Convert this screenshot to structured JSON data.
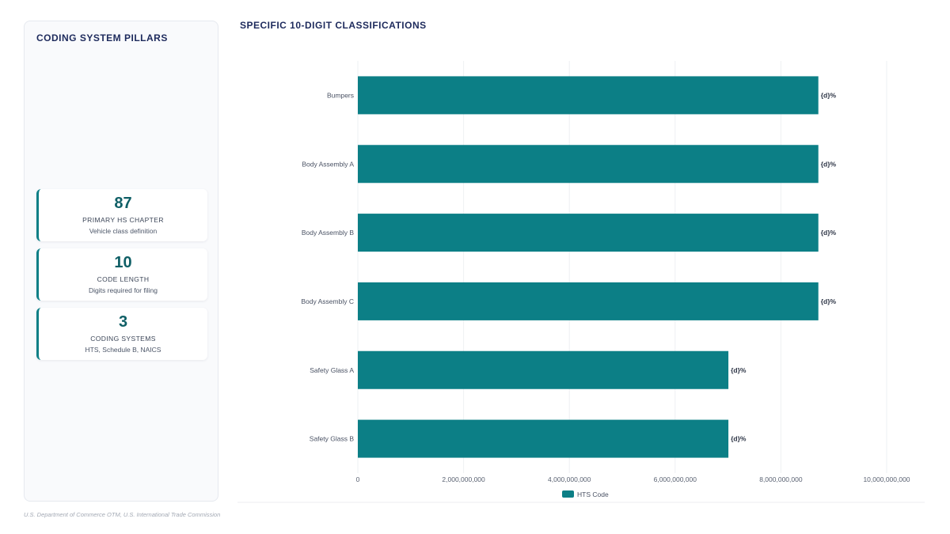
{
  "left_panel": {
    "title": "CODING SYSTEM PILLARS",
    "kpis": [
      {
        "value": "87",
        "label": "PRIMARY HS CHAPTER",
        "sub": "Vehicle class definition"
      },
      {
        "value": "10",
        "label": "CODE LENGTH",
        "sub": "Digits required for filing"
      },
      {
        "value": "3",
        "label": "CODING SYSTEMS",
        "sub": "HTS, Schedule B, NAICS"
      }
    ]
  },
  "source": "U.S. Department of Commerce OTM, U.S. International Trade Commission",
  "colors": {
    "bar": "#0c7f86",
    "accent": "#0c7f86",
    "title": "#1d2a5c"
  },
  "chart_data": {
    "type": "bar",
    "orientation": "horizontal",
    "title": "SPECIFIC 10-DIGIT CLASSIFICATIONS",
    "categories": [
      "Bumpers",
      "Body Assembly A",
      "Body Assembly B",
      "Body Assembly C",
      "Safety Glass A",
      "Safety Glass B"
    ],
    "series": [
      {
        "name": "HTS Code",
        "values": [
          8708101000,
          8708291000,
          8708292000,
          8708295000,
          7007110000,
          7007210000
        ]
      }
    ],
    "data_labels": [
      "{d}%",
      "{d}%",
      "{d}%",
      "{d}%",
      "{d}%",
      "{d}%"
    ],
    "x_ticks": [
      "0",
      "2,000,000,000",
      "4,000,000,000",
      "6,000,000,000",
      "8,000,000,000",
      "10,000,000,000"
    ],
    "xlim": [
      0,
      10000000000
    ],
    "grid": true,
    "legend": "bottom-center"
  }
}
